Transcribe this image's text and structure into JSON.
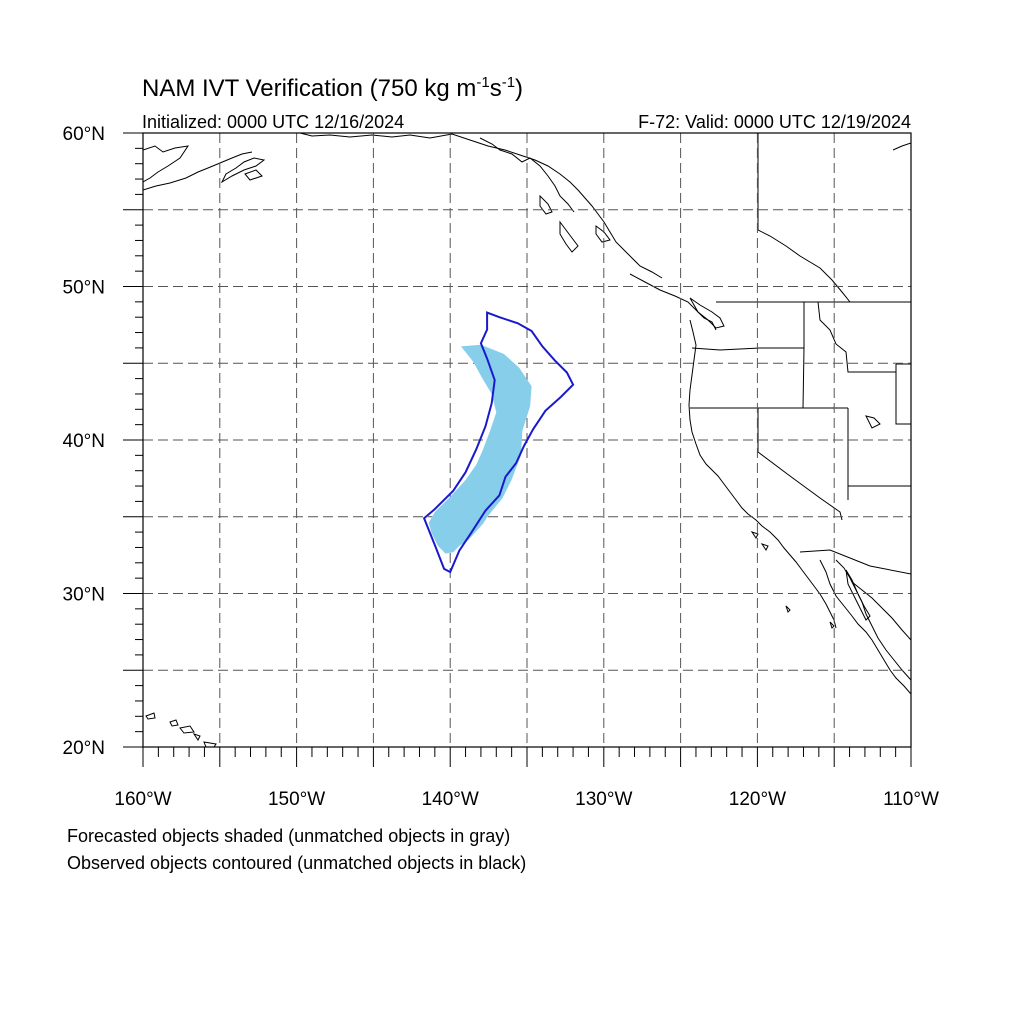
{
  "title": {
    "main": "NAM IVT Verification (750 kg m",
    "exp1": "-1",
    "mid": "s",
    "exp2": "-1",
    "end": ")"
  },
  "subtitle": {
    "left": "Initialized: 0000 UTC 12/16/2024",
    "right": "F-72: Valid: 0000 UTC 12/19/2024"
  },
  "axes": {
    "lon_range": [
      -160,
      -110
    ],
    "lat_range": [
      20,
      60
    ],
    "lon_ticks": [
      {
        "value": -160,
        "label": "160°W"
      },
      {
        "value": -150,
        "label": "150°W"
      },
      {
        "value": -140,
        "label": "140°W"
      },
      {
        "value": -130,
        "label": "130°W"
      },
      {
        "value": -120,
        "label": "120°W"
      },
      {
        "value": -110,
        "label": "110°W"
      }
    ],
    "lat_ticks": [
      {
        "value": 20,
        "label": "20°N"
      },
      {
        "value": 30,
        "label": "30°N"
      },
      {
        "value": 40,
        "label": "40°N"
      },
      {
        "value": 50,
        "label": "50°N"
      },
      {
        "value": 60,
        "label": "60°N"
      }
    ],
    "grid_lon": [
      -155,
      -150,
      -145,
      -140,
      -135,
      -130,
      -125,
      -120,
      -115
    ],
    "grid_lat": [
      25,
      30,
      35,
      40,
      45,
      50,
      55
    ]
  },
  "legend": {
    "line1": "Forecasted objects shaded (unmatched objects in gray)",
    "line2": "Observed objects contoured (unmatched objects in black)"
  },
  "colors": {
    "forecast_fill": "#87ceeb",
    "observed_contour": "#1a1acc"
  },
  "objects": {
    "forecast": [
      [
        -139.3,
        46.1
      ],
      [
        -138.0,
        46.2
      ],
      [
        -136.5,
        45.6
      ],
      [
        -135.5,
        44.7
      ],
      [
        -134.7,
        43.5
      ],
      [
        -134.8,
        42.2
      ],
      [
        -135.3,
        40.6
      ],
      [
        -135.4,
        39.0
      ],
      [
        -136.0,
        37.4
      ],
      [
        -136.6,
        36.2
      ],
      [
        -137.5,
        35.1
      ],
      [
        -137.9,
        34.5
      ],
      [
        -138.8,
        33.5
      ],
      [
        -139.4,
        33.1
      ],
      [
        -139.8,
        32.7
      ],
      [
        -140.3,
        32.6
      ],
      [
        -140.8,
        33.1
      ],
      [
        -141.2,
        33.9
      ],
      [
        -141.4,
        34.6
      ],
      [
        -141.0,
        35.3
      ],
      [
        -140.0,
        36.3
      ],
      [
        -139.0,
        37.4
      ],
      [
        -138.3,
        38.4
      ],
      [
        -137.9,
        39.3
      ],
      [
        -137.4,
        40.6
      ],
      [
        -137.0,
        41.8
      ],
      [
        -137.3,
        43.0
      ],
      [
        -137.9,
        44.0
      ],
      [
        -138.5,
        45.1
      ],
      [
        -139.3,
        46.1
      ]
    ],
    "observed": [
      [
        -137.6,
        48.3
      ],
      [
        -136.8,
        48.0
      ],
      [
        -135.6,
        47.6
      ],
      [
        -134.7,
        47.1
      ],
      [
        -134.0,
        46.1
      ],
      [
        -133.2,
        45.2
      ],
      [
        -132.4,
        44.4
      ],
      [
        -132.0,
        43.6
      ],
      [
        -132.8,
        42.8
      ],
      [
        -133.8,
        41.9
      ],
      [
        -134.6,
        40.7
      ],
      [
        -135.2,
        39.6
      ],
      [
        -135.7,
        38.5
      ],
      [
        -136.4,
        37.6
      ],
      [
        -136.8,
        36.4
      ],
      [
        -137.7,
        35.4
      ],
      [
        -138.6,
        34.0
      ],
      [
        -139.4,
        32.8
      ],
      [
        -140.0,
        31.4
      ],
      [
        -140.4,
        31.6
      ],
      [
        -140.9,
        32.9
      ],
      [
        -141.7,
        34.9
      ],
      [
        -141.0,
        35.5
      ],
      [
        -139.8,
        36.7
      ],
      [
        -139.0,
        37.9
      ],
      [
        -138.3,
        39.4
      ],
      [
        -137.7,
        40.9
      ],
      [
        -137.3,
        42.4
      ],
      [
        -137.1,
        43.9
      ],
      [
        -137.6,
        45.3
      ],
      [
        -138.0,
        46.3
      ],
      [
        -137.6,
        47.2
      ],
      [
        -137.6,
        48.3
      ]
    ]
  }
}
